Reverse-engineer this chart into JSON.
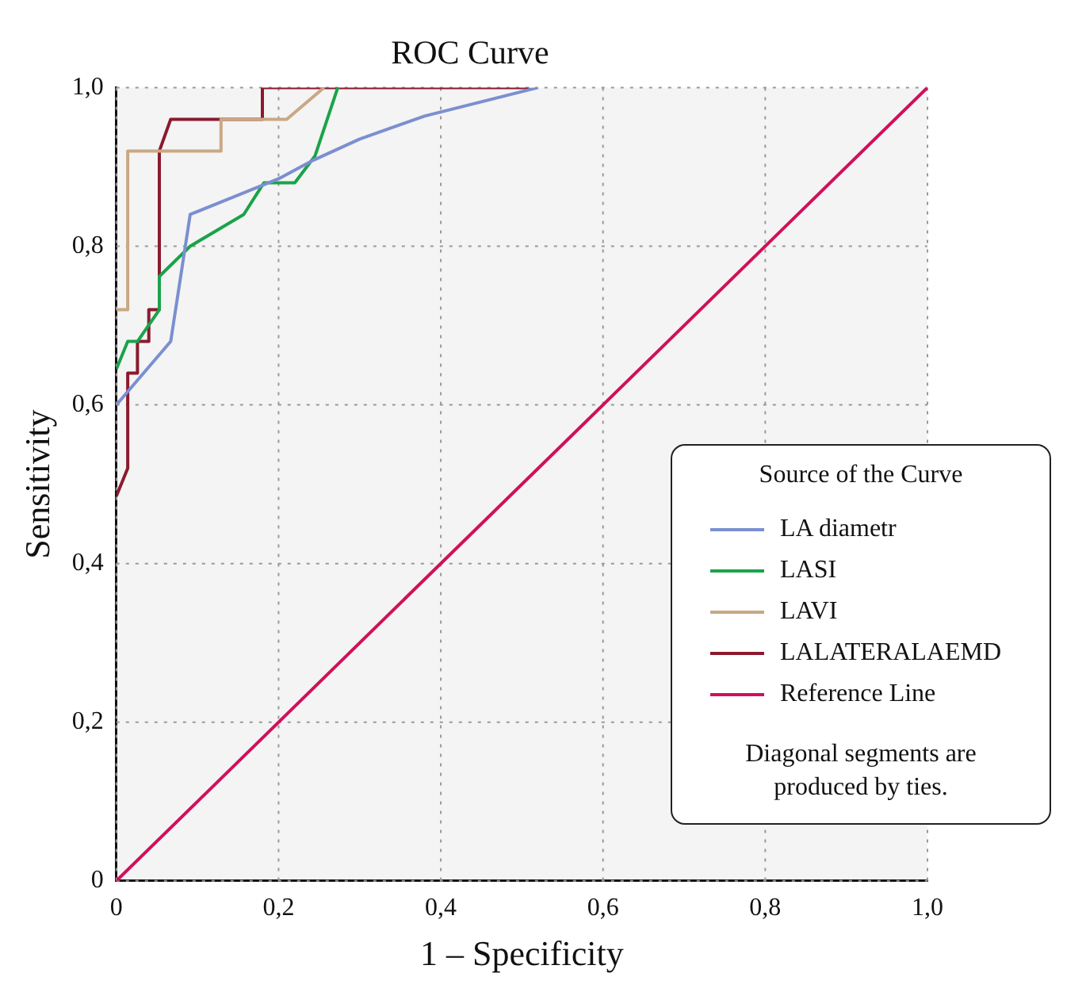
{
  "chart_data": {
    "type": "line",
    "title": "ROC Curve",
    "xlabel": "1 – Specificity",
    "ylabel": "Sensitivity",
    "legend_title": "Source of the Curve",
    "xlim": [
      0,
      1
    ],
    "ylim": [
      0,
      1
    ],
    "xticks": [
      0,
      {
        "value": 0.2,
        "label": "0,2"
      },
      {
        "value": 0.4,
        "label": "0,4"
      },
      {
        "value": 0.6,
        "label": "0,6"
      },
      {
        "value": 0.8,
        "label": "0,8"
      },
      {
        "value": 1,
        "label": "1,0"
      }
    ],
    "yticks": [
      0,
      {
        "value": 0.2,
        "label": "0,2"
      },
      {
        "value": 0.4,
        "label": "0,4"
      },
      {
        "value": 0.6,
        "label": "0,6"
      },
      {
        "value": 0.8,
        "label": "0,8"
      },
      {
        "value": 1,
        "label": "1,0"
      }
    ],
    "grid": true,
    "legend": "bottom right",
    "marker": "none",
    "line_style": "solid",
    "annotations": [
      "Diagonal segments are produced by ties."
    ],
    "series": [
      {
        "name": "LA diametr",
        "color": "#7b8fd0",
        "x": [
          0,
          0.067,
          0.091,
          0.2,
          0.24,
          0.3,
          0.38,
          0.52
        ],
        "values": [
          0.6,
          0.68,
          0.84,
          0.885,
          0.907,
          0.935,
          0.964,
          1
        ]
      },
      {
        "name": "LASI",
        "color": "#1aa34a",
        "x": [
          0,
          0.014,
          0.026,
          0.053,
          0.053,
          0.091,
          0.157,
          0.182,
          0.22,
          0.245,
          0.273
        ],
        "values": [
          0.645,
          0.68,
          0.68,
          0.72,
          0.762,
          0.8,
          0.84,
          0.88,
          0.88,
          0.914,
          1
        ]
      },
      {
        "name": "LAVI",
        "color": "#c9a883",
        "x": [
          0,
          0.014,
          0.014,
          0.129,
          0.129,
          0.21,
          0.256
        ],
        "values": [
          0.72,
          0.72,
          0.92,
          0.92,
          0.96,
          0.96,
          1
        ]
      },
      {
        "name": "LALATERALAEMD",
        "color": "#8b1a2e",
        "x": [
          0,
          0.014,
          0.014,
          0.026,
          0.026,
          0.04,
          0.04,
          0.053,
          0.053,
          0.067,
          0.18,
          0.18,
          0.51
        ],
        "values": [
          0.485,
          0.52,
          0.64,
          0.64,
          0.68,
          0.68,
          0.72,
          0.72,
          0.92,
          0.96,
          0.96,
          1,
          1
        ]
      },
      {
        "name": "Reference Line",
        "color": "#d0105a",
        "x": [
          0,
          1
        ],
        "values": [
          0,
          1
        ]
      }
    ]
  }
}
